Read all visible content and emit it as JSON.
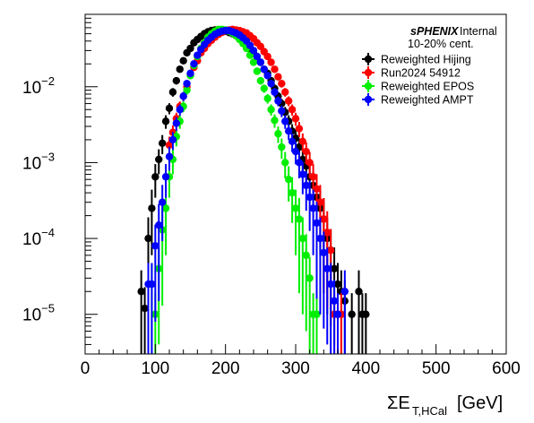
{
  "chart_data": {
    "type": "scatter",
    "xlabel": {
      "main": "ΣE",
      "sub": "T,HCal",
      "unit": "[GeV]"
    },
    "ylabel": "",
    "xlim": [
      0,
      600
    ],
    "ylim": [
      3e-06,
      0.09
    ],
    "yscale": "log",
    "grid": false,
    "legend_position": "top-right",
    "x_ticks": [
      0,
      100,
      200,
      300,
      400,
      500,
      600
    ],
    "x_tick_labels": [
      "0",
      "100",
      "200",
      "300",
      "400",
      "500",
      "600"
    ],
    "y_ticks": [
      1e-05,
      0.0001,
      0.001,
      0.01
    ],
    "y_tick_labels": [
      {
        "base": "10",
        "exp": "−5"
      },
      {
        "base": "10",
        "exp": "−4"
      },
      {
        "base": "10",
        "exp": "−3"
      },
      {
        "base": "10",
        "exp": "−2"
      }
    ],
    "annotations": {
      "experiment": "sPHENIX",
      "status": "Internal",
      "centrality": "10-20% cent."
    },
    "series": [
      {
        "name": "Reweighted Hijing",
        "color": "#000000",
        "points": [
          [
            80,
            2e-05
          ],
          [
            85,
            1.2e-05
          ],
          [
            90,
            0.0001
          ],
          [
            95,
            0.00025
          ],
          [
            100,
            0.00065
          ],
          [
            105,
            0.0011
          ],
          [
            110,
            0.0018
          ],
          [
            115,
            0.0035
          ],
          [
            120,
            0.0052
          ],
          [
            125,
            0.0085
          ],
          [
            130,
            0.012
          ],
          [
            135,
            0.017
          ],
          [
            140,
            0.022
          ],
          [
            145,
            0.028
          ],
          [
            150,
            0.032
          ],
          [
            155,
            0.038
          ],
          [
            160,
            0.042
          ],
          [
            165,
            0.046
          ],
          [
            170,
            0.05
          ],
          [
            175,
            0.053
          ],
          [
            180,
            0.055
          ],
          [
            185,
            0.056
          ],
          [
            190,
            0.056
          ],
          [
            195,
            0.055
          ],
          [
            200,
            0.054
          ],
          [
            205,
            0.052
          ],
          [
            210,
            0.05
          ],
          [
            215,
            0.047
          ],
          [
            220,
            0.044
          ],
          [
            225,
            0.04
          ],
          [
            230,
            0.036
          ],
          [
            235,
            0.032
          ],
          [
            240,
            0.028
          ],
          [
            245,
            0.025
          ],
          [
            250,
            0.021
          ],
          [
            255,
            0.017
          ],
          [
            260,
            0.015
          ],
          [
            265,
            0.012
          ],
          [
            270,
            0.0095
          ],
          [
            275,
            0.0075
          ],
          [
            280,
            0.006
          ],
          [
            285,
            0.0046
          ],
          [
            290,
            0.0035
          ],
          [
            295,
            0.0026
          ],
          [
            300,
            0.0021
          ],
          [
            305,
            0.0016
          ],
          [
            310,
            0.0011
          ],
          [
            315,
            0.0009
          ],
          [
            320,
            0.00065
          ],
          [
            325,
            0.0005
          ],
          [
            330,
            0.00035
          ],
          [
            335,
            0.00025
          ],
          [
            340,
            0.00018
          ],
          [
            345,
            0.0001
          ],
          [
            350,
            7e-05
          ],
          [
            355,
            4e-05
          ],
          [
            360,
            2.5e-05
          ],
          [
            365,
            2e-05
          ],
          [
            370,
            1.5e-05
          ],
          [
            380,
            1e-05
          ],
          [
            390,
            2e-05
          ],
          [
            395,
            1e-05
          ],
          [
            400,
            1e-05
          ]
        ]
      },
      {
        "name": "Run2024 54912",
        "color": "#ff0000",
        "points": [
          [
            120,
            0.0017
          ],
          [
            125,
            0.0025
          ],
          [
            130,
            0.0038
          ],
          [
            135,
            0.0055
          ],
          [
            140,
            0.0075
          ],
          [
            145,
            0.01
          ],
          [
            150,
            0.0145
          ],
          [
            155,
            0.018
          ],
          [
            160,
            0.022
          ],
          [
            165,
            0.028
          ],
          [
            170,
            0.032
          ],
          [
            175,
            0.037
          ],
          [
            180,
            0.041
          ],
          [
            185,
            0.045
          ],
          [
            190,
            0.049
          ],
          [
            195,
            0.052
          ],
          [
            200,
            0.055
          ],
          [
            205,
            0.056
          ],
          [
            210,
            0.057
          ],
          [
            215,
            0.056
          ],
          [
            220,
            0.055
          ],
          [
            225,
            0.053
          ],
          [
            230,
            0.051
          ],
          [
            235,
            0.047
          ],
          [
            240,
            0.043
          ],
          [
            245,
            0.038
          ],
          [
            250,
            0.034
          ],
          [
            255,
            0.029
          ],
          [
            260,
            0.025
          ],
          [
            265,
            0.021
          ],
          [
            270,
            0.017
          ],
          [
            275,
            0.0135
          ],
          [
            280,
            0.011
          ],
          [
            285,
            0.0085
          ],
          [
            290,
            0.0065
          ],
          [
            295,
            0.005
          ],
          [
            300,
            0.0038
          ],
          [
            305,
            0.0028
          ],
          [
            310,
            0.0019
          ],
          [
            315,
            0.0014
          ],
          [
            320,
            0.001
          ],
          [
            325,
            0.00065
          ],
          [
            330,
            0.00045
          ],
          [
            335,
            0.0003
          ],
          [
            340,
            0.00018
          ],
          [
            345,
            0.00012
          ],
          [
            350,
            7e-05
          ],
          [
            355,
            1e-05
          ],
          [
            360,
            1e-05
          ],
          [
            365,
            1e-05
          ]
        ]
      },
      {
        "name": "Reweighted EPOS",
        "color": "#00ee00",
        "points": [
          [
            95,
            2.5e-05
          ],
          [
            100,
            1e-05
          ],
          [
            105,
            4e-05
          ],
          [
            110,
            0.00013
          ],
          [
            115,
            0.00025
          ],
          [
            120,
            0.00065
          ],
          [
            125,
            0.0011
          ],
          [
            130,
            0.0022
          ],
          [
            135,
            0.0035
          ],
          [
            140,
            0.0055
          ],
          [
            145,
            0.009
          ],
          [
            150,
            0.014
          ],
          [
            155,
            0.019
          ],
          [
            160,
            0.025
          ],
          [
            165,
            0.032
          ],
          [
            170,
            0.038
          ],
          [
            175,
            0.045
          ],
          [
            180,
            0.05
          ],
          [
            185,
            0.054
          ],
          [
            190,
            0.057
          ],
          [
            195,
            0.057
          ],
          [
            200,
            0.056
          ],
          [
            205,
            0.054
          ],
          [
            210,
            0.051
          ],
          [
            215,
            0.047
          ],
          [
            220,
            0.042
          ],
          [
            225,
            0.037
          ],
          [
            230,
            0.032
          ],
          [
            235,
            0.026
          ],
          [
            240,
            0.021
          ],
          [
            245,
            0.016
          ],
          [
            250,
            0.012
          ],
          [
            255,
            0.0095
          ],
          [
            260,
            0.007
          ],
          [
            265,
            0.005
          ],
          [
            270,
            0.0036
          ],
          [
            275,
            0.0024
          ],
          [
            280,
            0.0016
          ],
          [
            285,
            0.001
          ],
          [
            290,
            0.0006
          ],
          [
            295,
            0.0004
          ],
          [
            300,
            0.00025
          ],
          [
            305,
            0.00018
          ],
          [
            310,
            0.0001
          ],
          [
            315,
            6e-05
          ],
          [
            320,
            3e-05
          ],
          [
            325,
            1e-05
          ],
          [
            330,
            1e-05
          ]
        ]
      },
      {
        "name": "Reweighted AMPT",
        "color": "#0000ff",
        "points": [
          [
            90,
            2.5e-05
          ],
          [
            95,
            2.5e-05
          ],
          [
            100,
            8e-05
          ],
          [
            105,
            0.00015
          ],
          [
            110,
            0.0003
          ],
          [
            115,
            0.00065
          ],
          [
            120,
            0.0012
          ],
          [
            125,
            0.002
          ],
          [
            130,
            0.0033
          ],
          [
            135,
            0.005
          ],
          [
            140,
            0.0075
          ],
          [
            145,
            0.011
          ],
          [
            150,
            0.015
          ],
          [
            155,
            0.02
          ],
          [
            160,
            0.026
          ],
          [
            165,
            0.031
          ],
          [
            170,
            0.036
          ],
          [
            175,
            0.041
          ],
          [
            180,
            0.045
          ],
          [
            185,
            0.049
          ],
          [
            190,
            0.052
          ],
          [
            195,
            0.054
          ],
          [
            200,
            0.055
          ],
          [
            205,
            0.055
          ],
          [
            210,
            0.053
          ],
          [
            215,
            0.051
          ],
          [
            220,
            0.048
          ],
          [
            225,
            0.044
          ],
          [
            230,
            0.04
          ],
          [
            235,
            0.035
          ],
          [
            240,
            0.03
          ],
          [
            245,
            0.025
          ],
          [
            250,
            0.021
          ],
          [
            255,
            0.017
          ],
          [
            260,
            0.014
          ],
          [
            265,
            0.011
          ],
          [
            270,
            0.0085
          ],
          [
            275,
            0.0065
          ],
          [
            280,
            0.0048
          ],
          [
            285,
            0.0035
          ],
          [
            290,
            0.0026
          ],
          [
            295,
            0.0019
          ],
          [
            300,
            0.0014
          ],
          [
            305,
            0.001
          ],
          [
            310,
            0.0007
          ],
          [
            315,
            0.0005
          ],
          [
            320,
            0.00035
          ],
          [
            325,
            0.00025
          ],
          [
            330,
            0.00016
          ],
          [
            335,
            0.0001
          ],
          [
            340,
            6.5e-05
          ],
          [
            345,
            4e-05
          ],
          [
            350,
            2.5e-05
          ],
          [
            355,
            1.5e-05
          ],
          [
            360,
            1e-05
          ],
          [
            370,
            2e-05
          ]
        ]
      }
    ]
  }
}
